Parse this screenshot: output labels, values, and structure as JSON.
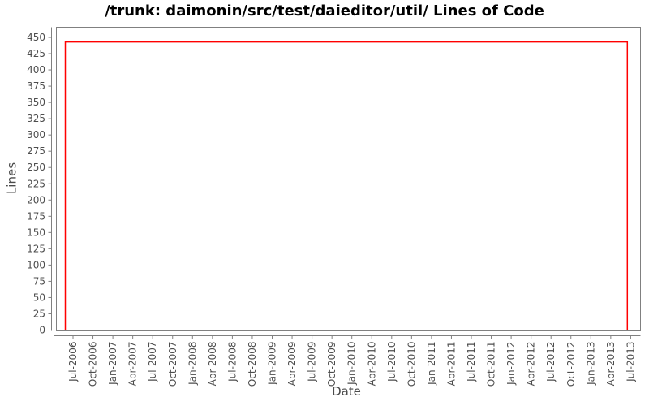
{
  "chart_data": {
    "type": "line",
    "title": "/trunk: daimonin/src/test/daieditor/util/ Lines of Code",
    "xlabel": "Date",
    "ylabel": "Lines",
    "ylim": [
      0,
      450
    ],
    "y_ticks": [
      0,
      25,
      50,
      75,
      100,
      125,
      150,
      175,
      200,
      225,
      250,
      275,
      300,
      325,
      350,
      375,
      400,
      425,
      450
    ],
    "x_tick_labels": [
      "Jul-2006",
      "Oct-2006",
      "Jan-2007",
      "Apr-2007",
      "Jul-2007",
      "Oct-2007",
      "Jan-2008",
      "Apr-2008",
      "Jul-2008",
      "Oct-2008",
      "Jan-2009",
      "Apr-2009",
      "Jul-2009",
      "Oct-2009",
      "Jan-2010",
      "Apr-2010",
      "Jul-2010",
      "Oct-2010",
      "Jan-2011",
      "Apr-2011",
      "Jul-2011",
      "Oct-2011",
      "Jan-2012",
      "Apr-2012",
      "Jul-2012",
      "Oct-2012",
      "Jan-2013",
      "Apr-2013",
      "Jul-2013"
    ],
    "grid": false,
    "legend": "none",
    "series": [
      {
        "name": "Lines of Code",
        "color": "#ff0000",
        "points": [
          {
            "date": "2006-06-10",
            "lines": 0
          },
          {
            "date": "2006-06-10",
            "lines": 443
          },
          {
            "date": "2013-06-30",
            "lines": 443
          },
          {
            "date": "2013-06-30",
            "lines": 0
          }
        ]
      }
    ],
    "colors": {
      "background": "#ffffff",
      "axis": "#808080",
      "tick_label": "#4d4d4d",
      "axis_label": "#4a4a4a",
      "title": "#000000",
      "series": "#ff0000"
    }
  }
}
